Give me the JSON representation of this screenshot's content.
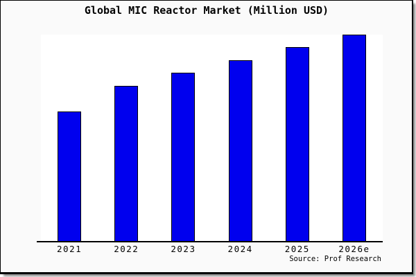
{
  "figure": {
    "title": "Global MIC Reactor Market (Million USD)",
    "source": "Source: Prof Research"
  },
  "colors": {
    "figure_bg": "#fafafa",
    "plot_bg": "#ffffff",
    "frame_border": "#000000",
    "axis": "#000000",
    "bar_fill": "#0000ee",
    "bar_edge": "#000000",
    "text": "#000000"
  },
  "chart_data": {
    "type": "bar",
    "categories": [
      "2021",
      "2022",
      "2023",
      "2024",
      "2025",
      "2026e"
    ],
    "values": [
      62.6,
      75.1,
      81.5,
      87.5,
      94.0,
      100
    ],
    "title": "Global MIC Reactor Market (Million USD)",
    "xlabel": "",
    "ylabel": "",
    "ylim": [
      0,
      100
    ],
    "grid": false,
    "legend": false,
    "note": "No y-axis scale is shown in the figure; values are relative bar heights normalized to 2026e = 100"
  }
}
